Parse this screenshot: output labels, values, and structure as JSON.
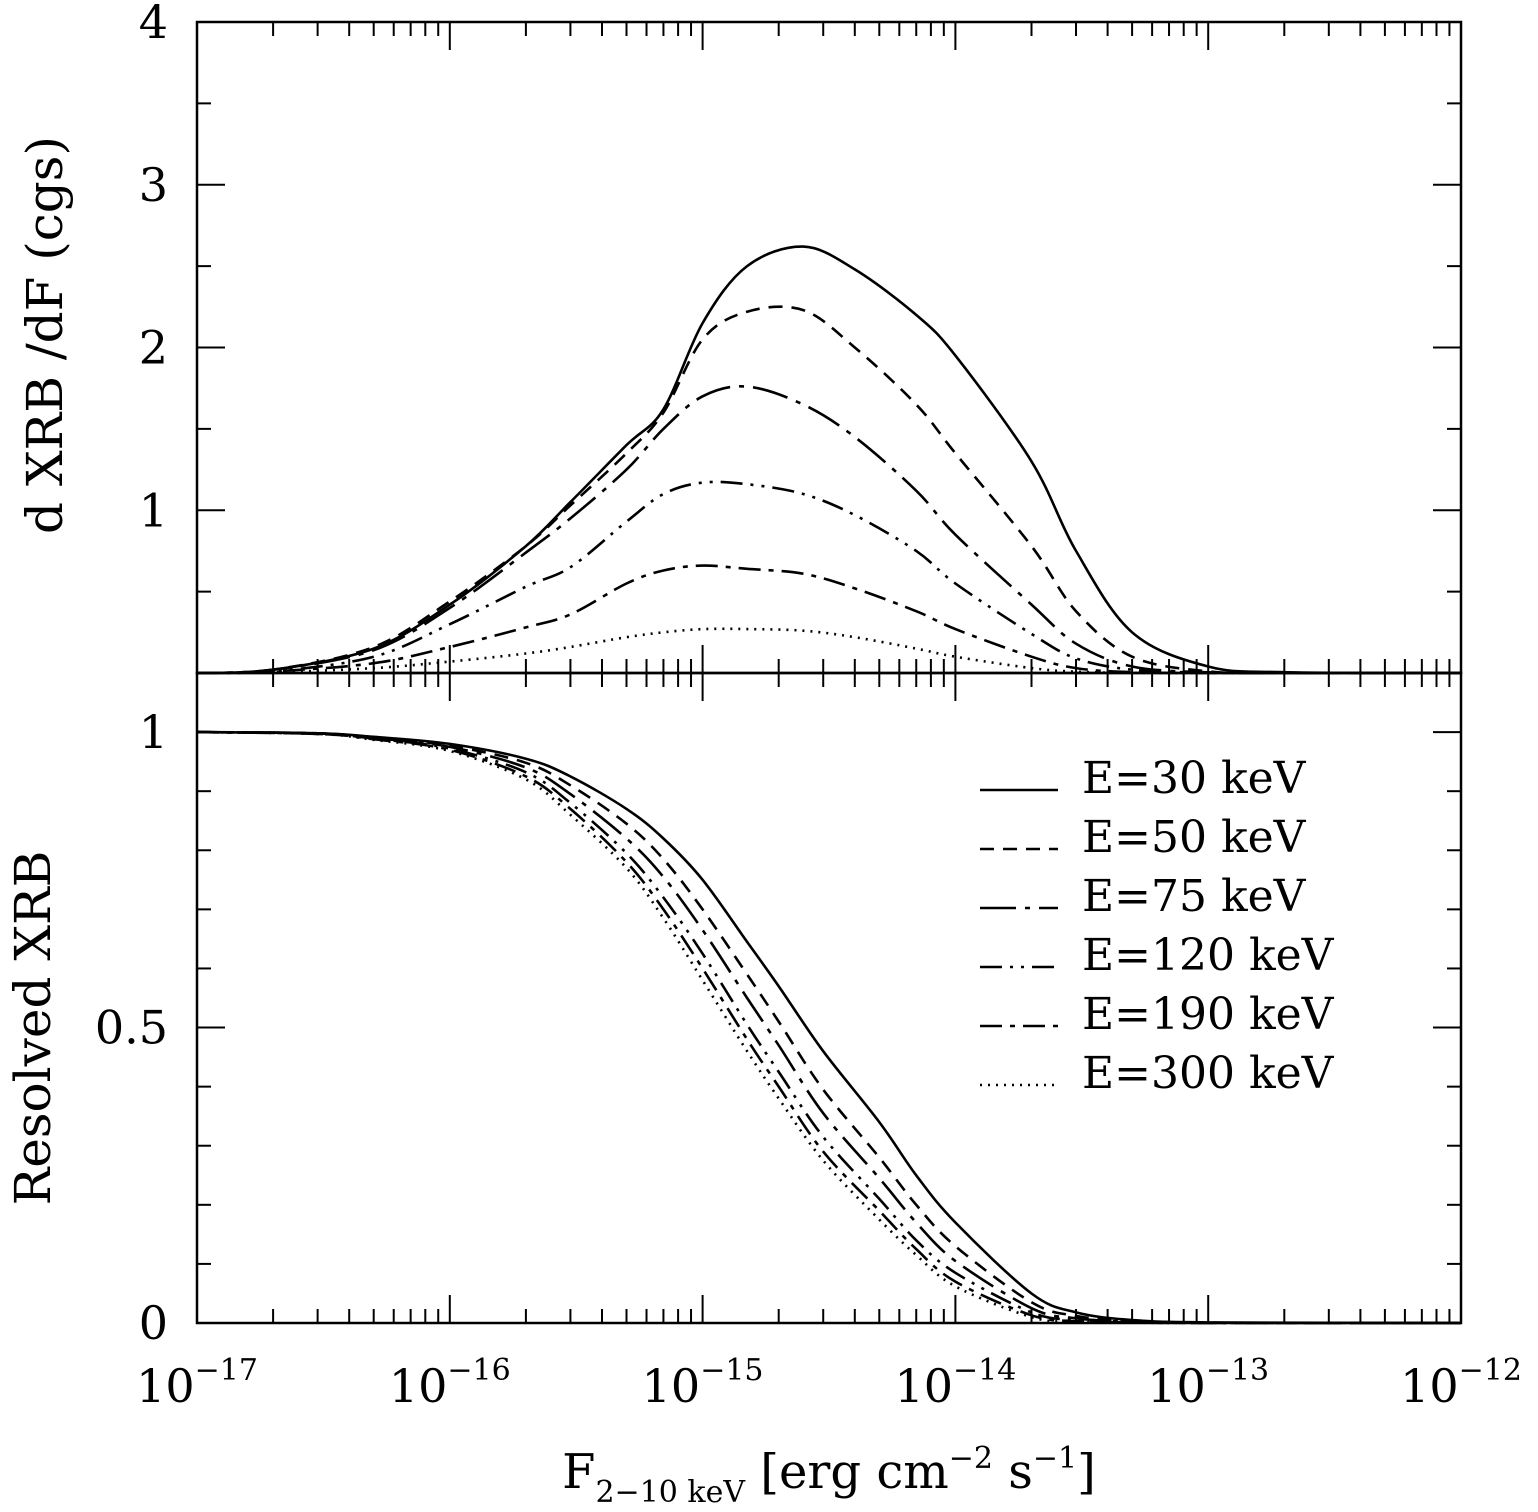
{
  "chart_data": [
    {
      "panel": "top",
      "type": "line",
      "title": "",
      "ylabel": "d XRB /dF (cgs)",
      "xlabel": "",
      "xscale": "log",
      "xlim": [
        1e-17,
        1e-12
      ],
      "ylim": [
        0,
        4
      ],
      "yticks_major": [
        0,
        1,
        2,
        3,
        4
      ],
      "ytick_labels": [
        "",
        "1",
        "2",
        "3",
        "4"
      ],
      "x": [
        1e-17,
        2e-17,
        5e-17,
        1e-16,
        2e-16,
        3e-16,
        5e-16,
        7e-16,
        1e-15,
        1.5e-15,
        2.5e-15,
        4e-15,
        7e-15,
        1e-14,
        2e-14,
        3e-14,
        5e-14,
        1e-13,
        2e-13,
        1e-12
      ],
      "series": [
        {
          "name": "E=30 keV",
          "dash": "",
          "values": [
            0.0,
            0.02,
            0.15,
            0.42,
            0.78,
            1.05,
            1.4,
            1.62,
            2.15,
            2.5,
            2.62,
            2.48,
            2.2,
            1.95,
            1.3,
            0.75,
            0.25,
            0.04,
            0.005,
            0.0
          ]
        },
        {
          "name": "E=50 keV",
          "dash": "14 9",
          "values": [
            0.0,
            0.02,
            0.16,
            0.44,
            0.78,
            1.03,
            1.35,
            1.6,
            2.05,
            2.22,
            2.23,
            2.0,
            1.65,
            1.35,
            0.78,
            0.38,
            0.1,
            0.01,
            0.001,
            0.0
          ]
        },
        {
          "name": "E=75 keV",
          "dash": "36 9 5 9",
          "values": [
            0.0,
            0.02,
            0.14,
            0.4,
            0.74,
            0.95,
            1.25,
            1.5,
            1.7,
            1.76,
            1.65,
            1.45,
            1.12,
            0.85,
            0.42,
            0.18,
            0.04,
            0.004,
            0.0,
            0.0
          ]
        },
        {
          "name": "E=120 keV",
          "dash": "22 8 3 8 3 8",
          "values": [
            0.0,
            0.01,
            0.1,
            0.3,
            0.53,
            0.65,
            0.93,
            1.1,
            1.17,
            1.16,
            1.1,
            0.97,
            0.75,
            0.55,
            0.24,
            0.09,
            0.02,
            0.002,
            0.0,
            0.0
          ]
        },
        {
          "name": "E=190 keV",
          "dash": "22 8 5 8",
          "values": [
            0.0,
            0.01,
            0.06,
            0.16,
            0.28,
            0.36,
            0.55,
            0.63,
            0.66,
            0.64,
            0.61,
            0.52,
            0.38,
            0.27,
            0.1,
            0.03,
            0.005,
            0.0,
            0.0,
            0.0
          ]
        },
        {
          "name": "E=300 keV",
          "dash": "2 6",
          "values": [
            0.0,
            0.005,
            0.03,
            0.07,
            0.12,
            0.16,
            0.22,
            0.25,
            0.27,
            0.27,
            0.26,
            0.22,
            0.15,
            0.1,
            0.03,
            0.008,
            0.001,
            0.0,
            0.0,
            0.0
          ]
        }
      ]
    },
    {
      "panel": "bottom",
      "type": "line",
      "title": "",
      "ylabel": "Resolved XRB",
      "xlabel": "F",
      "xlabel_sub": "2−10 keV",
      "xlabel_units": "[erg cm",
      "xlabel_cm_exp": "−2",
      "xlabel_s": " s",
      "xlabel_s_exp": "−1",
      "xlabel_close": "]",
      "xscale": "log",
      "xlim": [
        1e-17,
        1e-12
      ],
      "ylim": [
        0,
        1.1
      ],
      "yticks_major": [
        0,
        0.5,
        1
      ],
      "ytick_labels": [
        "0",
        "0.5",
        "1"
      ],
      "xtick_base": "10",
      "xtick_exponents": [
        "−17",
        "−16",
        "−15",
        "−14",
        "−13",
        "−12"
      ],
      "legend": "top-right",
      "x": [
        1e-17,
        3e-17,
        5e-17,
        1e-16,
        2e-16,
        3e-16,
        5e-16,
        7e-16,
        1e-15,
        1.5e-15,
        2e-15,
        3e-15,
        5e-15,
        7e-15,
        1e-14,
        2e-14,
        3e-14,
        5e-14,
        1e-13,
        1e-12
      ],
      "series": [
        {
          "name": "E=30 keV",
          "dash": "",
          "values": [
            1.0,
            0.998,
            0.992,
            0.98,
            0.955,
            0.925,
            0.87,
            0.82,
            0.75,
            0.645,
            0.57,
            0.46,
            0.34,
            0.25,
            0.17,
            0.05,
            0.018,
            0.005,
            0.001,
            0.0
          ]
        },
        {
          "name": "E=50 keV",
          "dash": "14 9",
          "values": [
            1.0,
            0.998,
            0.991,
            0.977,
            0.948,
            0.91,
            0.845,
            0.785,
            0.7,
            0.59,
            0.51,
            0.395,
            0.28,
            0.2,
            0.13,
            0.035,
            0.012,
            0.003,
            0.0005,
            0.0
          ]
        },
        {
          "name": "E=75 keV",
          "dash": "36 9 5 9",
          "values": [
            1.0,
            0.998,
            0.99,
            0.975,
            0.94,
            0.895,
            0.82,
            0.755,
            0.665,
            0.55,
            0.47,
            0.355,
            0.245,
            0.17,
            0.105,
            0.025,
            0.008,
            0.002,
            0.0003,
            0.0
          ]
        },
        {
          "name": "E=120 keV",
          "dash": "22 8 3 8 3 8",
          "values": [
            1.0,
            0.997,
            0.989,
            0.972,
            0.932,
            0.88,
            0.795,
            0.72,
            0.625,
            0.505,
            0.425,
            0.315,
            0.21,
            0.14,
            0.085,
            0.018,
            0.005,
            0.001,
            0.0002,
            0.0
          ]
        },
        {
          "name": "E=190 keV",
          "dash": "22 8 5 8",
          "values": [
            1.0,
            0.997,
            0.988,
            0.97,
            0.925,
            0.87,
            0.78,
            0.7,
            0.6,
            0.48,
            0.4,
            0.29,
            0.19,
            0.125,
            0.07,
            0.013,
            0.003,
            0.0008,
            0.0001,
            0.0
          ]
        },
        {
          "name": "E=300 keV",
          "dash": "2 6",
          "values": [
            1.0,
            0.997,
            0.987,
            0.968,
            0.92,
            0.86,
            0.77,
            0.685,
            0.58,
            0.46,
            0.38,
            0.275,
            0.175,
            0.115,
            0.062,
            0.01,
            0.002,
            0.0005,
            0.0001,
            0.0
          ]
        }
      ]
    }
  ],
  "legend": {
    "items": [
      "E=30 keV",
      "E=50 keV",
      "E=75 keV",
      "E=120 keV",
      "E=190 keV",
      "E=300 keV"
    ]
  }
}
